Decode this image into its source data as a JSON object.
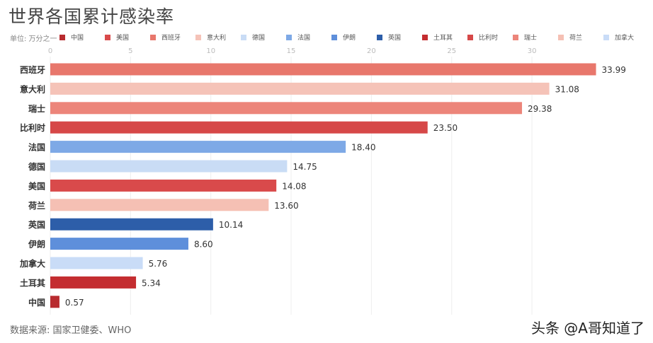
{
  "chart_data": {
    "type": "bar",
    "orientation": "horizontal",
    "title": "世界各国累计感染率",
    "unit_label": "单位: 万分之一",
    "categories": [
      "西班牙",
      "意大利",
      "瑞士",
      "比利时",
      "法国",
      "德国",
      "美国",
      "荷兰",
      "英国",
      "伊朗",
      "加拿大",
      "土耳其",
      "中国"
    ],
    "values": [
      33.99,
      31.08,
      29.38,
      23.5,
      18.4,
      14.75,
      14.08,
      13.6,
      10.14,
      8.6,
      5.76,
      5.34,
      0.57
    ],
    "value_labels": [
      "33.99",
      "31.08",
      "29.38",
      "23.50",
      "18.40",
      "14.75",
      "14.08",
      "13.60",
      "10.14",
      "8.60",
      "5.76",
      "5.34",
      "0.57"
    ],
    "colors": [
      "#e8776c",
      "#f5c3b8",
      "#ec857a",
      "#d64848",
      "#7ea9e6",
      "#c9dcf5",
      "#d94a4b",
      "#f5c0b4",
      "#2d5ea9",
      "#5e8fdb",
      "#c9dcf7",
      "#c42d30",
      "#b82b2f"
    ],
    "xlim": [
      0,
      35
    ],
    "xticks": [
      "0",
      "5",
      "10",
      "15",
      "20",
      "25",
      "30"
    ],
    "grid": true,
    "legend": [
      {
        "name": "中国",
        "color": "#b82b2f"
      },
      {
        "name": "美国",
        "color": "#d94a4b"
      },
      {
        "name": "西班牙",
        "color": "#e8776c"
      },
      {
        "name": "意大利",
        "color": "#f5c3b8"
      },
      {
        "name": "德国",
        "color": "#c9dcf5"
      },
      {
        "name": "法国",
        "color": "#7ea9e6"
      },
      {
        "name": "伊朗",
        "color": "#5e8fdb"
      },
      {
        "name": "英国",
        "color": "#2d5ea9"
      },
      {
        "name": "土耳其",
        "color": "#c42d30"
      },
      {
        "name": "比利时",
        "color": "#d64848"
      },
      {
        "name": "瑞士",
        "color": "#ec857a"
      },
      {
        "name": "荷兰",
        "color": "#f5c0b4"
      },
      {
        "name": "加拿大",
        "color": "#c9dcf7"
      }
    ],
    "legend_position": "top"
  },
  "source": "数据来源: 国家卫健委、WHO",
  "watermark": "头条 @A哥知道了"
}
